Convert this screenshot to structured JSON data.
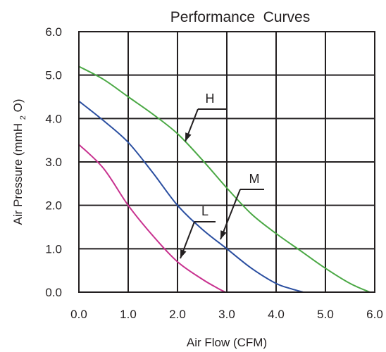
{
  "chart_data": {
    "type": "line",
    "title": "Performance  Curves",
    "xlabel": "Air Flow (CFM)",
    "ylabel": {
      "prefix": "Air Pressure (mmH",
      "subscript": "2",
      "suffix": "O)"
    },
    "xlim": [
      0,
      6
    ],
    "ylim": [
      0,
      6
    ],
    "x_ticks": [
      "0.0",
      "1.0",
      "2.0",
      "3.0",
      "4.0",
      "5.0",
      "6.0"
    ],
    "y_ticks": [
      "0.0",
      "1.0",
      "2.0",
      "3.0",
      "4.0",
      "5.0",
      "6.0"
    ],
    "grid": true,
    "series": [
      {
        "name": "H",
        "color": "#4aa844",
        "x": [
          0.0,
          0.5,
          1.0,
          1.5,
          2.0,
          2.5,
          3.0,
          3.5,
          4.0,
          4.5,
          5.0,
          5.5,
          5.9
        ],
        "y": [
          5.2,
          4.9,
          4.5,
          4.1,
          3.65,
          3.05,
          2.4,
          1.8,
          1.35,
          0.95,
          0.55,
          0.2,
          0.0
        ]
      },
      {
        "name": "M",
        "color": "#2a4ea0",
        "x": [
          0.0,
          0.5,
          1.0,
          1.5,
          2.0,
          2.5,
          3.0,
          3.5,
          4.0,
          4.3,
          4.55
        ],
        "y": [
          4.4,
          3.95,
          3.45,
          2.75,
          2.0,
          1.45,
          1.0,
          0.55,
          0.2,
          0.08,
          0.0
        ]
      },
      {
        "name": "L",
        "color": "#c8318f",
        "x": [
          0.0,
          0.5,
          1.0,
          1.5,
          2.0,
          2.5,
          2.8,
          2.97
        ],
        "y": [
          3.4,
          2.85,
          2.0,
          1.3,
          0.7,
          0.3,
          0.1,
          0.0
        ]
      }
    ],
    "annotations": [
      {
        "text": "H",
        "series": "H"
      },
      {
        "text": "M",
        "series": "M"
      },
      {
        "text": "L",
        "series": "L"
      }
    ]
  },
  "colors": {
    "axis": "#231f20",
    "grid": "#231f20",
    "text": "#231f20"
  }
}
